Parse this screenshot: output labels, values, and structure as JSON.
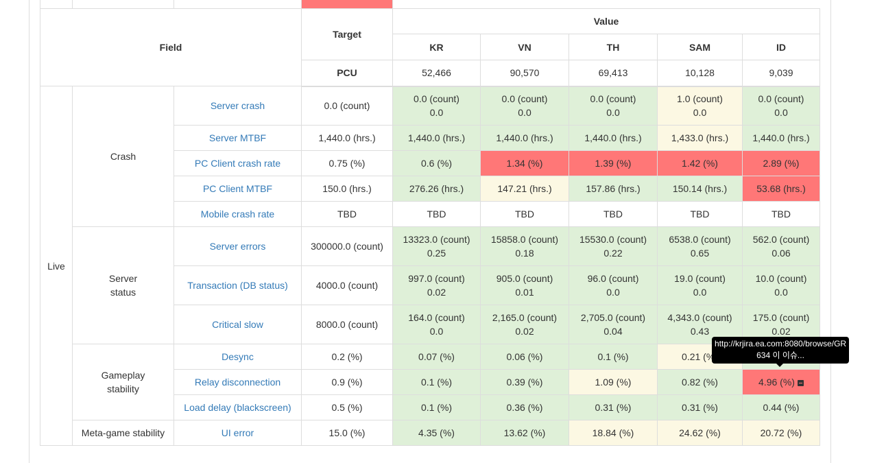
{
  "header": {
    "field": "Field",
    "target": "Target",
    "value": "Value",
    "regions": [
      "KR",
      "VN",
      "TH",
      "SAM",
      "ID"
    ],
    "pcu_label": "PCU",
    "pcu": [
      "52,466",
      "90,570",
      "69,413",
      "10,128",
      "9,039"
    ]
  },
  "live_label": "Live",
  "groups": {
    "crash": "Crash",
    "server_status_1": "Server",
    "server_status_2": "status",
    "gameplay_1": "Gameplay",
    "gameplay_2": "stability",
    "meta": "Meta-game stability"
  },
  "rows": [
    {
      "field": "Server crash",
      "target": "0.0 (count)",
      "values": [
        [
          "0.0 (count)",
          "0.0"
        ],
        [
          "0.0 (count)",
          "0.0"
        ],
        [
          "0.0 (count)",
          "0.0"
        ],
        [
          "1.0 (count)",
          "0.0"
        ],
        [
          "0.0 (count)",
          "0.0"
        ]
      ]
    },
    {
      "field": "Server MTBF",
      "target": "1,440.0 (hrs.)",
      "values": [
        [
          "1,440.0 (hrs.)"
        ],
        [
          "1,440.0 (hrs.)"
        ],
        [
          "1,440.0 (hrs.)"
        ],
        [
          "1,433.0 (hrs.)"
        ],
        [
          "1,440.0 (hrs.)"
        ]
      ]
    },
    {
      "field": "PC Client crash rate",
      "target": "0.75 (%)",
      "values": [
        [
          "0.6 (%)"
        ],
        [
          "1.34 (%)"
        ],
        [
          "1.39 (%)"
        ],
        [
          "1.42 (%)"
        ],
        [
          "2.89 (%)"
        ]
      ]
    },
    {
      "field": "PC Client MTBF",
      "target": "150.0 (hrs.)",
      "values": [
        [
          "276.26 (hrs.)"
        ],
        [
          "147.21 (hrs.)"
        ],
        [
          "157.86 (hrs.)"
        ],
        [
          "150.14 (hrs.)"
        ],
        [
          "53.68 (hrs.)"
        ]
      ]
    },
    {
      "field": "Mobile crash rate",
      "target": "TBD",
      "values": [
        [
          "TBD"
        ],
        [
          "TBD"
        ],
        [
          "TBD"
        ],
        [
          "TBD"
        ],
        [
          "TBD"
        ]
      ]
    },
    {
      "field": "Server errors",
      "target": "300000.0 (count)",
      "values": [
        [
          "13323.0 (count)",
          "0.25"
        ],
        [
          "15858.0 (count)",
          "0.18"
        ],
        [
          "15530.0 (count)",
          "0.22"
        ],
        [
          "6538.0 (count)",
          "0.65"
        ],
        [
          "562.0 (count)",
          "0.06"
        ]
      ]
    },
    {
      "field": "Transaction (DB status)",
      "target": "4000.0 (count)",
      "values": [
        [
          "997.0 (count)",
          "0.02"
        ],
        [
          "905.0 (count)",
          "0.01"
        ],
        [
          "96.0 (count)",
          "0.0"
        ],
        [
          "19.0 (count)",
          "0.0"
        ],
        [
          "10.0 (count)",
          "0.0"
        ]
      ]
    },
    {
      "field": "Critical slow",
      "target": "8000.0 (count)",
      "values": [
        [
          "164.0 (count)",
          "0.0"
        ],
        [
          "2,165.0 (count)",
          "0.02"
        ],
        [
          "2,705.0 (count)",
          "0.04"
        ],
        [
          "4,343.0 (count)",
          "0.43"
        ],
        [
          "175.0 (count)",
          "0.02"
        ]
      ]
    },
    {
      "field": "Desync",
      "target": "0.2 (%)",
      "values": [
        [
          "0.07 (%)"
        ],
        [
          "0.06 (%)"
        ],
        [
          "0.1 (%)"
        ],
        [
          "0.21 (%)"
        ],
        [
          ""
        ]
      ]
    },
    {
      "field": "Relay disconnection",
      "target": "0.9 (%)",
      "values": [
        [
          "0.1 (%)"
        ],
        [
          "0.39 (%)"
        ],
        [
          "1.09 (%)"
        ],
        [
          "0.82 (%)"
        ],
        [
          "4.96 (%)"
        ]
      ]
    },
    {
      "field": "Load delay (blackscreen)",
      "target": "0.5 (%)",
      "values": [
        [
          "0.1 (%)"
        ],
        [
          "0.36 (%)"
        ],
        [
          "0.31 (%)"
        ],
        [
          "0.31 (%)"
        ],
        [
          "0.44 (%)"
        ]
      ]
    },
    {
      "field": "UI error",
      "target": "15.0 (%)",
      "values": [
        [
          "4.35 (%)"
        ],
        [
          "13.62 (%)"
        ],
        [
          "18.84 (%)"
        ],
        [
          "24.62 (%)"
        ],
        [
          "20.72 (%)"
        ]
      ]
    }
  ],
  "status_colors": {
    "green": "#dff0d8",
    "yellow": "#fcf8e3",
    "red": "#ff7777"
  },
  "row_status": [
    [
      "green",
      "green",
      "green",
      "yellow",
      "green"
    ],
    [
      "green",
      "green",
      "green",
      "yellow",
      "green"
    ],
    [
      "green",
      "red",
      "red",
      "red",
      "red"
    ],
    [
      "green",
      "yellow",
      "green",
      "green",
      "red"
    ],
    [
      "none",
      "none",
      "none",
      "none",
      "none"
    ],
    [
      "green",
      "green",
      "green",
      "green",
      "green"
    ],
    [
      "green",
      "green",
      "green",
      "green",
      "green"
    ],
    [
      "green",
      "green",
      "green",
      "green",
      "green"
    ],
    [
      "green",
      "green",
      "green",
      "yellow",
      "green"
    ],
    [
      "green",
      "green",
      "yellow",
      "green",
      "red"
    ],
    [
      "green",
      "green",
      "green",
      "green",
      "green"
    ],
    [
      "green",
      "green",
      "yellow",
      "yellow",
      "yellow"
    ]
  ],
  "tooltip": {
    "line1": "http://krjira.ea.com:8080/browse/GR",
    "line2": "634 이 이슈..."
  },
  "icons": {
    "relay_id_icon": "external-link-icon"
  }
}
